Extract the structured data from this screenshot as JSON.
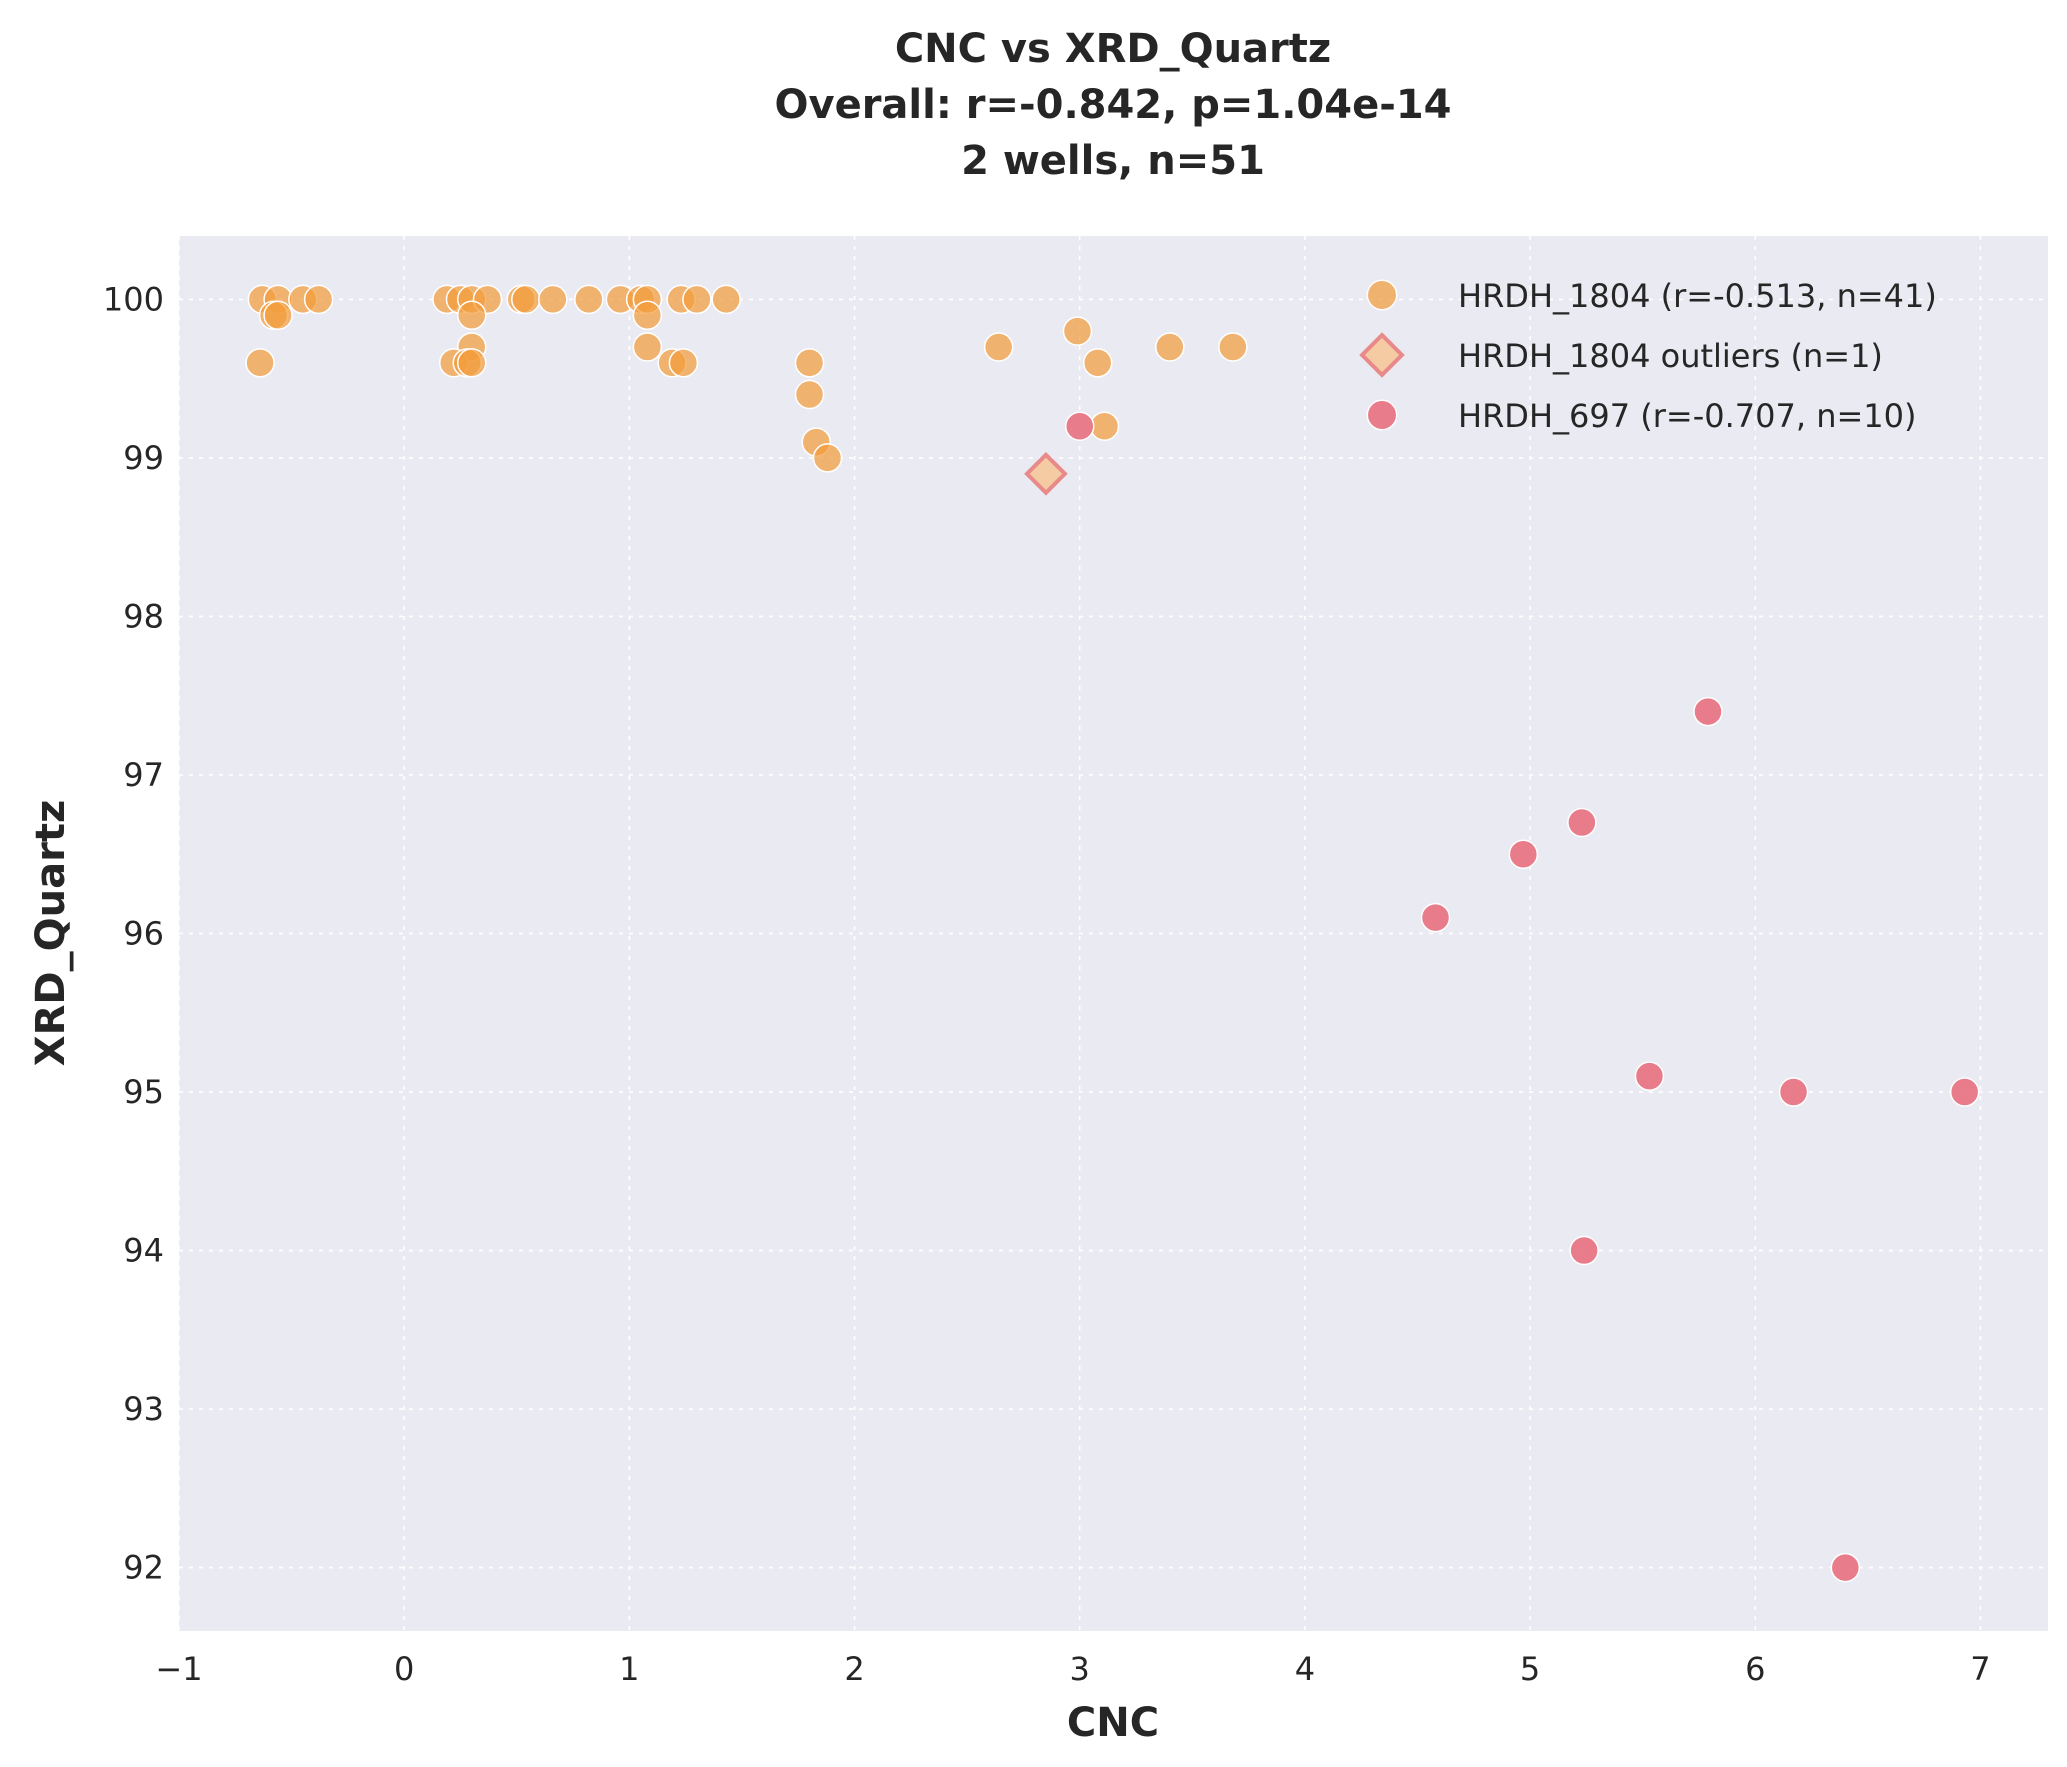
{
  "chart_data": {
    "type": "scatter",
    "title_lines": [
      "CNC vs XRD_Quartz",
      "Overall: r=-0.842, p=1.04e-14",
      "2 wells, n=51"
    ],
    "xlabel": "CNC",
    "ylabel": "XRD_Quartz",
    "xlim": [
      -1,
      7.3
    ],
    "ylim": [
      91.6,
      100.4
    ],
    "xticks": [
      -1,
      0,
      1,
      2,
      3,
      4,
      5,
      6,
      7
    ],
    "xtick_labels": [
      "−1",
      "0",
      "1",
      "2",
      "3",
      "4",
      "5",
      "6",
      "7"
    ],
    "yticks": [
      92,
      93,
      94,
      95,
      96,
      97,
      98,
      99,
      100
    ],
    "ytick_labels": [
      "92",
      "93",
      "94",
      "95",
      "96",
      "97",
      "98",
      "99",
      "100"
    ],
    "grid": true,
    "legend_position": "top-right",
    "colors": {
      "background": "#eaeaf2",
      "grid": "#ffffff",
      "hrdh_1804": "#f39c3c",
      "hrdh_1804_outlier_fill": "#f5c89a",
      "hrdh_1804_outlier_edge": "#e88a8a",
      "hrdh_697": "#e8707e"
    },
    "series": [
      {
        "name": "HRDH_1804 (r=-0.513, n=41)",
        "marker": "circle",
        "points": [
          [
            -0.63,
            100.0
          ],
          [
            -0.56,
            100.0
          ],
          [
            -0.45,
            100.0
          ],
          [
            -0.38,
            100.0
          ],
          [
            -0.64,
            99.6
          ],
          [
            -0.58,
            99.9
          ],
          [
            -0.56,
            99.9
          ],
          [
            0.19,
            100.0
          ],
          [
            0.25,
            100.0
          ],
          [
            0.3,
            100.0
          ],
          [
            0.37,
            100.0
          ],
          [
            0.52,
            100.0
          ],
          [
            0.54,
            100.0
          ],
          [
            0.66,
            100.0
          ],
          [
            0.82,
            100.0
          ],
          [
            0.96,
            100.0
          ],
          [
            1.05,
            100.0
          ],
          [
            1.08,
            100.0
          ],
          [
            1.23,
            100.0
          ],
          [
            1.3,
            100.0
          ],
          [
            1.43,
            100.0
          ],
          [
            0.3,
            99.9
          ],
          [
            0.3,
            99.7
          ],
          [
            0.22,
            99.6
          ],
          [
            0.28,
            99.6
          ],
          [
            0.3,
            99.6
          ],
          [
            1.08,
            99.9
          ],
          [
            1.08,
            99.7
          ],
          [
            1.19,
            99.6
          ],
          [
            1.24,
            99.6
          ],
          [
            1.8,
            99.6
          ],
          [
            1.8,
            99.4
          ],
          [
            1.83,
            99.1
          ],
          [
            1.88,
            99.0
          ],
          [
            2.64,
            99.7
          ],
          [
            2.99,
            99.8
          ],
          [
            3.08,
            99.6
          ],
          [
            3.11,
            99.2
          ],
          [
            3.4,
            99.7
          ],
          [
            3.68,
            99.7
          ]
        ]
      },
      {
        "name": "HRDH_1804 outliers (n=1)",
        "marker": "diamond",
        "points": [
          [
            2.85,
            98.9
          ]
        ]
      },
      {
        "name": "HRDH_697 (r=-0.707, n=10)",
        "marker": "circle",
        "points": [
          [
            3.0,
            99.2
          ],
          [
            4.58,
            96.1
          ],
          [
            4.97,
            96.5
          ],
          [
            5.23,
            96.7
          ],
          [
            5.24,
            94.0
          ],
          [
            5.53,
            95.1
          ],
          [
            5.79,
            97.4
          ],
          [
            6.17,
            95.0
          ],
          [
            6.4,
            92.0
          ],
          [
            6.93,
            95.0
          ]
        ]
      }
    ]
  }
}
